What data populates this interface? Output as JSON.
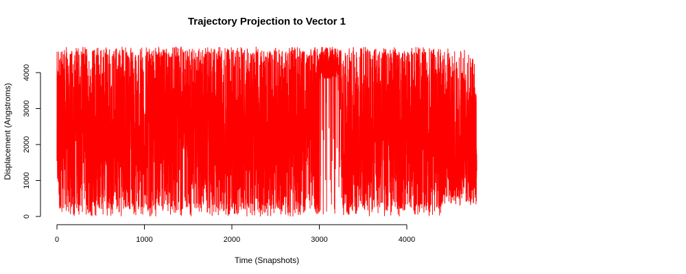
{
  "chart_data": {
    "type": "line",
    "title": "Trajectory Projection to Vector 1",
    "xlabel": "Time (Snapshots)",
    "ylabel": "Displacement (Angstroms)",
    "xlim": [
      0,
      4800
    ],
    "ylim": [
      0,
      4750
    ],
    "x_ticks": [
      0,
      1000,
      2000,
      3000,
      4000
    ],
    "y_ticks": [
      0,
      1000,
      2000,
      3000,
      4000
    ],
    "x_tick_labels": [
      "0",
      "1000",
      "2000",
      "3000",
      "4000"
    ],
    "y_tick_labels": [
      "0",
      "1000",
      "2000",
      "3000",
      "4000"
    ],
    "grid": false,
    "legend": "none",
    "series": [
      {
        "color": "#ff0000",
        "x_range": [
          0,
          4800
        ],
        "n_points": 4801,
        "min": 0,
        "max": 4720,
        "note_high_plateau_x": [
          3000,
          3250
        ]
      }
    ]
  }
}
